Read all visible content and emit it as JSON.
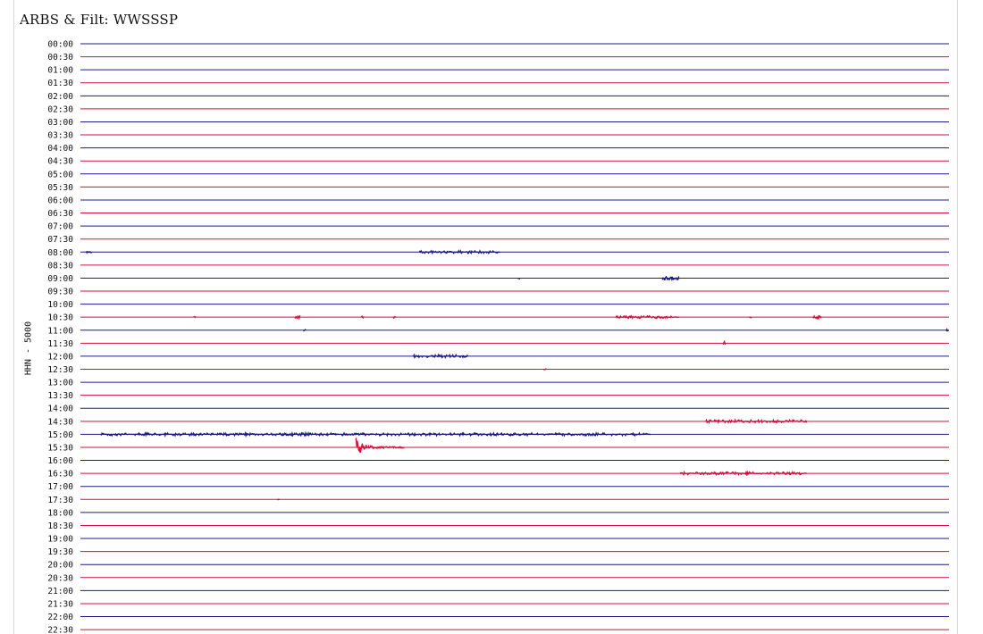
{
  "chart_data": {
    "type": "line",
    "title": "ARBS & Filt: WWSSSP",
    "ylabel": "HHN - 5000",
    "xlabel": "",
    "row_minutes": 30,
    "row_labels": [
      "00:00",
      "00:30",
      "01:00",
      "01:30",
      "02:00",
      "02:30",
      "03:00",
      "03:30",
      "04:00",
      "04:30",
      "05:00",
      "05:30",
      "06:00",
      "06:30",
      "07:00",
      "07:30",
      "08:00",
      "08:30",
      "09:00",
      "09:30",
      "10:00",
      "10:30",
      "11:00",
      "11:30",
      "12:00",
      "12:30",
      "13:00",
      "13:30",
      "14:00",
      "14:30",
      "15:00",
      "15:30",
      "16:00",
      "16:30",
      "17:00",
      "17:30",
      "18:00",
      "18:30",
      "19:00",
      "19:30",
      "20:00",
      "20:30",
      "21:00",
      "21:30",
      "22:00",
      "22:30"
    ],
    "colors": {
      "even_rows": "#1c1c8a",
      "odd_rows": "#d0103a"
    },
    "events": [
      {
        "row": "08:00",
        "start_min": 0.2,
        "end_min": 0.4,
        "amp": 1
      },
      {
        "row": "08:00",
        "start_min": 11.7,
        "end_min": 14.5,
        "amp": 1.5
      },
      {
        "row": "09:00",
        "start_min": 15.1,
        "end_min": 15.2,
        "amp": 1
      },
      {
        "row": "09:00",
        "start_min": 20.1,
        "end_min": 20.7,
        "amp": 2
      },
      {
        "row": "10:30",
        "start_min": 3.9,
        "end_min": 4.0,
        "amp": 1
      },
      {
        "row": "10:30",
        "start_min": 7.4,
        "end_min": 7.6,
        "amp": 1.5
      },
      {
        "row": "10:30",
        "start_min": 9.7,
        "end_min": 9.8,
        "amp": 1
      },
      {
        "row": "10:30",
        "start_min": 10.8,
        "end_min": 10.9,
        "amp": 1
      },
      {
        "row": "10:30",
        "start_min": 18.5,
        "end_min": 20.7,
        "amp": 1.5
      },
      {
        "row": "10:30",
        "start_min": 23.1,
        "end_min": 23.2,
        "amp": 1
      },
      {
        "row": "10:30",
        "start_min": 25.3,
        "end_min": 25.6,
        "amp": 1.5
      },
      {
        "row": "11:00",
        "start_min": 7.7,
        "end_min": 7.8,
        "amp": 1.5
      },
      {
        "row": "11:00",
        "start_min": 29.9,
        "end_min": 30,
        "amp": 1.5
      },
      {
        "row": "11:30",
        "start_min": 22.2,
        "end_min": 22.3,
        "amp": 2
      },
      {
        "row": "12:00",
        "start_min": 11.5,
        "end_min": 13.4,
        "amp": 1.5
      },
      {
        "row": "12:30",
        "start_min": 16.0,
        "end_min": 16.1,
        "amp": 1
      },
      {
        "row": "14:30",
        "start_min": 21.6,
        "end_min": 25.1,
        "amp": 1.5
      },
      {
        "row": "15:00",
        "start_min": 0.7,
        "end_min": 19.7,
        "amp": 1.5
      },
      {
        "row": "15:30",
        "start_min": 9.5,
        "end_min": 11.2,
        "amp": 12
      },
      {
        "row": "16:30",
        "start_min": 20.7,
        "end_min": 25.1,
        "amp": 1.5
      },
      {
        "row": "17:30",
        "start_min": 6.8,
        "end_min": 6.9,
        "amp": 1
      }
    ]
  }
}
